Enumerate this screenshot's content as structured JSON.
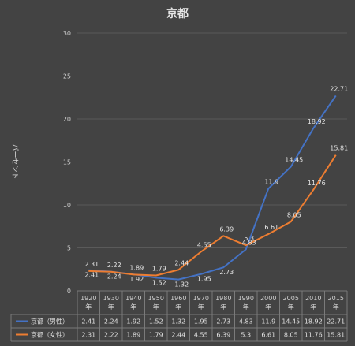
{
  "chart_data": {
    "type": "line",
    "title": "京都",
    "ylabel": "パーセント",
    "ylim": [
      0,
      30
    ],
    "yticks": [
      0,
      5,
      10,
      15,
      20,
      25,
      30
    ],
    "categories": [
      "1920\n年",
      "1930\n年",
      "1940\n年",
      "1950\n年",
      "1960\n年",
      "1970\n年",
      "1980\n年",
      "1990\n年",
      "2000\n年",
      "2005\n年",
      "2010\n年",
      "2015\n年"
    ],
    "series": [
      {
        "name": "京都（男性）",
        "color": "#4472c4",
        "values": [
          2.41,
          2.24,
          1.92,
          1.52,
          1.32,
          1.95,
          2.73,
          4.83,
          11.9,
          14.45,
          18.92,
          22.71
        ],
        "labels": [
          "2.41",
          "2.24",
          "1.92",
          "1.52",
          "1.32",
          "1.95",
          "2.73",
          "4.83",
          "11.9",
          "14.45",
          "18.92",
          "22.71"
        ]
      },
      {
        "name": "京都（女性）",
        "color": "#ed7d31",
        "values": [
          2.31,
          2.22,
          1.89,
          1.79,
          2.44,
          4.55,
          6.39,
          5.3,
          6.61,
          8.05,
          11.76,
          15.81
        ],
        "labels": [
          "2.31",
          "2.22",
          "1.89",
          "1.79",
          "2.44",
          "4.55",
          "6.39",
          "5.3",
          "6.61",
          "8.05",
          "11.76",
          "15.81"
        ]
      }
    ],
    "legend": "data-table",
    "grid": true
  }
}
